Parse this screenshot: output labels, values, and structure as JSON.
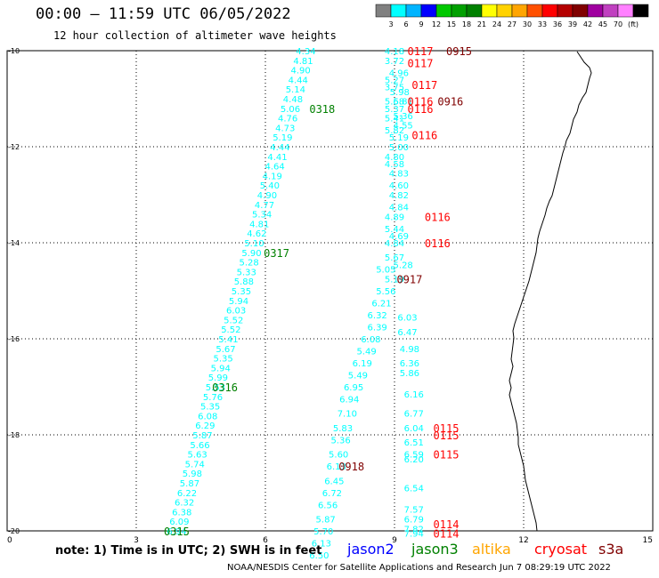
{
  "header": {
    "title": "00:00 – 11:59 UTC 06/05/2022",
    "subtitle": "12 hour collection of altimeter wave heights"
  },
  "scale": {
    "colors": [
      "#808080",
      "#00ffff",
      "#00b4ff",
      "#0000ff",
      "#00c800",
      "#00a000",
      "#008000",
      "#ffff00",
      "#ffd200",
      "#ffa500",
      "#ff5000",
      "#ff0000",
      "#b40000",
      "#800000",
      "#a000a0",
      "#c040c0",
      "#ff80ff",
      "#000000"
    ],
    "labels": [
      "3",
      "6",
      "9",
      "12",
      "15",
      "18",
      "21",
      "24",
      "27",
      "30",
      "33",
      "36",
      "39",
      "42",
      "45",
      "70",
      "(ft)"
    ]
  },
  "axes": {
    "x_ticks": [
      "0",
      "3",
      "6",
      "9",
      "12",
      "15"
    ],
    "y_ticks": [
      "-10",
      "-12",
      "-14",
      "-16",
      "-18",
      "-20"
    ]
  },
  "footer": {
    "note": "note: 1) Time is in UTC; 2) SWH is in feet",
    "legend": [
      {
        "name": "jason2",
        "color": "#0000ff"
      },
      {
        "name": "jason3",
        "color": "#008000"
      },
      {
        "name": "altika",
        "color": "#ffa500"
      },
      {
        "name": "cryosat",
        "color": "#ff0000"
      },
      {
        "name": "s3a",
        "color": "#800000"
      }
    ],
    "credit": "NOAA/NESDIS Center for Satellite Applications and Research   Jun  7 08:29:19 UTC 2022"
  },
  "chart_data": {
    "type": "scatter",
    "xlim": [
      0,
      15
    ],
    "ylim": [
      -20,
      -10
    ],
    "tracks": [
      {
        "satellite": "jason3",
        "color": "#00ffff",
        "points": [
          {
            "x": 6.94,
            "y": -10.0,
            "v": "4.34"
          },
          {
            "x": 6.88,
            "y": -10.2,
            "v": "4.81"
          },
          {
            "x": 6.82,
            "y": -10.4,
            "v": "4.90"
          },
          {
            "x": 6.76,
            "y": -10.6,
            "v": "4.44"
          },
          {
            "x": 6.7,
            "y": -10.8,
            "v": "5.14"
          },
          {
            "x": 6.64,
            "y": -11.0,
            "v": "4.48"
          },
          {
            "x": 6.58,
            "y": -11.2,
            "v": "5.06"
          },
          {
            "x": 6.52,
            "y": -11.4,
            "v": "4.76"
          },
          {
            "x": 6.46,
            "y": -11.6,
            "v": "4.73"
          },
          {
            "x": 6.4,
            "y": -11.8,
            "v": "5.19"
          },
          {
            "x": 6.34,
            "y": -12.0,
            "v": "4.44"
          },
          {
            "x": 6.28,
            "y": -12.2,
            "v": "4.41"
          },
          {
            "x": 6.22,
            "y": -12.4,
            "v": "4.64"
          },
          {
            "x": 6.16,
            "y": -12.6,
            "v": "4.19"
          },
          {
            "x": 6.1,
            "y": -12.8,
            "v": "5.40"
          },
          {
            "x": 6.04,
            "y": -13.0,
            "v": "4.90"
          },
          {
            "x": 5.98,
            "y": -13.2,
            "v": "4.77"
          },
          {
            "x": 5.92,
            "y": -13.4,
            "v": "5.34"
          },
          {
            "x": 5.86,
            "y": -13.6,
            "v": "4.81"
          },
          {
            "x": 5.8,
            "y": -13.8,
            "v": "4.62"
          },
          {
            "x": 5.74,
            "y": -14.0,
            "v": "5.10"
          },
          {
            "x": 5.68,
            "y": -14.2,
            "v": "5.90"
          },
          {
            "x": 5.62,
            "y": -14.4,
            "v": "5.28"
          },
          {
            "x": 5.56,
            "y": -14.6,
            "v": "5.33"
          },
          {
            "x": 5.5,
            "y": -14.8,
            "v": "5.88"
          },
          {
            "x": 5.44,
            "y": -15.0,
            "v": "5.35"
          },
          {
            "x": 5.38,
            "y": -15.2,
            "v": "5.94"
          },
          {
            "x": 5.32,
            "y": -15.4,
            "v": "6.03"
          },
          {
            "x": 5.26,
            "y": -15.6,
            "v": "5.52"
          },
          {
            "x": 5.2,
            "y": -15.8,
            "v": "5.52"
          },
          {
            "x": 5.14,
            "y": -16.0,
            "v": "5.41"
          },
          {
            "x": 5.08,
            "y": -16.2,
            "v": "5.67"
          },
          {
            "x": 5.02,
            "y": -16.4,
            "v": "5.35"
          },
          {
            "x": 4.96,
            "y": -16.6,
            "v": "5.94"
          },
          {
            "x": 4.9,
            "y": -16.8,
            "v": "5.99"
          },
          {
            "x": 4.84,
            "y": -17.0,
            "v": "5.53"
          },
          {
            "x": 4.78,
            "y": -17.2,
            "v": "5.76"
          },
          {
            "x": 4.72,
            "y": -17.4,
            "v": "5.35"
          },
          {
            "x": 4.66,
            "y": -17.6,
            "v": "6.08"
          },
          {
            "x": 4.6,
            "y": -17.8,
            "v": "6.29"
          },
          {
            "x": 4.54,
            "y": -18.0,
            "v": "5.87"
          },
          {
            "x": 4.48,
            "y": -18.2,
            "v": "5.66"
          },
          {
            "x": 4.42,
            "y": -18.4,
            "v": "5.63"
          },
          {
            "x": 4.36,
            "y": -18.6,
            "v": "5.74"
          },
          {
            "x": 4.3,
            "y": -18.8,
            "v": "5.98"
          },
          {
            "x": 4.24,
            "y": -19.0,
            "v": "5.87"
          },
          {
            "x": 4.18,
            "y": -19.2,
            "v": "6.22"
          },
          {
            "x": 4.12,
            "y": -19.4,
            "v": "6.32"
          },
          {
            "x": 4.06,
            "y": -19.6,
            "v": "6.38"
          },
          {
            "x": 4.0,
            "y": -19.8,
            "v": "6.09"
          },
          {
            "x": 3.94,
            "y": -20.0,
            "v": "6.94"
          }
        ],
        "time_labels": [
          {
            "x": 7.32,
            "y": -11.2,
            "v": "0318"
          },
          {
            "x": 6.26,
            "y": -14.2,
            "v": "0317"
          },
          {
            "x": 5.06,
            "y": -17.0,
            "v": "0316"
          },
          {
            "x": 3.94,
            "y": -20.0,
            "v": "0315"
          }
        ]
      },
      {
        "satellite": "cryosat",
        "color": "#00ffff",
        "points": [
          {
            "x": 9.0,
            "y": -10.0,
            "v": "4.18"
          },
          {
            "x": 9.0,
            "y": -10.2,
            "v": "3.72"
          },
          {
            "x": 9.1,
            "y": -10.45,
            "v": "4.96"
          },
          {
            "x": 9.0,
            "y": -10.6,
            "v": "5.27"
          },
          {
            "x": 9.0,
            "y": -10.75,
            "v": "3.75"
          },
          {
            "x": 9.12,
            "y": -10.85,
            "v": "5.98"
          },
          {
            "x": 9.0,
            "y": -11.05,
            "v": "5.68"
          },
          {
            "x": 9.2,
            "y": -11.05,
            "v": "5.81"
          },
          {
            "x": 9.0,
            "y": -11.2,
            "v": "5.37"
          },
          {
            "x": 9.0,
            "y": -11.4,
            "v": "5.41"
          },
          {
            "x": 9.2,
            "y": -11.35,
            "v": "5.36"
          },
          {
            "x": 9.2,
            "y": -11.55,
            "v": "4.55"
          },
          {
            "x": 9.0,
            "y": -11.65,
            "v": "5.82"
          },
          {
            "x": 9.1,
            "y": -11.8,
            "v": "5.19"
          },
          {
            "x": 9.1,
            "y": -12.0,
            "v": "5.00"
          },
          {
            "x": 9.0,
            "y": -12.2,
            "v": "4.80"
          },
          {
            "x": 9.0,
            "y": -12.35,
            "v": "4.58"
          },
          {
            "x": 9.1,
            "y": -12.55,
            "v": "4.83"
          },
          {
            "x": 9.1,
            "y": -12.8,
            "v": "4.60"
          },
          {
            "x": 9.1,
            "y": -13.0,
            "v": "4.82"
          },
          {
            "x": 9.1,
            "y": -13.25,
            "v": "4.84"
          },
          {
            "x": 9.0,
            "y": -13.45,
            "v": "4.89"
          },
          {
            "x": 9.0,
            "y": -13.7,
            "v": "5.44"
          },
          {
            "x": 9.1,
            "y": -13.85,
            "v": "4.69"
          },
          {
            "x": 9.0,
            "y": -14.0,
            "v": "4.84"
          },
          {
            "x": 9.0,
            "y": -14.3,
            "v": "5.67"
          },
          {
            "x": 9.2,
            "y": -14.45,
            "v": "5.28"
          },
          {
            "x": 8.8,
            "y": -14.55,
            "v": "5.05"
          },
          {
            "x": 9.0,
            "y": -14.75,
            "v": "5.19"
          },
          {
            "x": 8.8,
            "y": -15.0,
            "v": "5.56"
          },
          {
            "x": 8.7,
            "y": -15.25,
            "v": "6.21"
          },
          {
            "x": 8.6,
            "y": -15.5,
            "v": "6.32"
          },
          {
            "x": 9.3,
            "y": -15.55,
            "v": "6.03"
          },
          {
            "x": 8.6,
            "y": -15.75,
            "v": "6.39"
          },
          {
            "x": 9.3,
            "y": -15.85,
            "v": "6.47"
          },
          {
            "x": 8.45,
            "y": -16.0,
            "v": "6.08"
          },
          {
            "x": 8.35,
            "y": -16.25,
            "v": "5.49"
          },
          {
            "x": 9.35,
            "y": -16.2,
            "v": "4.98"
          },
          {
            "x": 8.25,
            "y": -16.5,
            "v": "6.19"
          },
          {
            "x": 9.35,
            "y": -16.5,
            "v": "6.36"
          },
          {
            "x": 8.15,
            "y": -16.75,
            "v": "5.49"
          },
          {
            "x": 9.35,
            "y": -16.7,
            "v": "5.86"
          },
          {
            "x": 8.05,
            "y": -17.0,
            "v": "6.95"
          },
          {
            "x": 9.45,
            "y": -17.15,
            "v": "6.16"
          },
          {
            "x": 7.95,
            "y": -17.25,
            "v": "6.94"
          },
          {
            "x": 7.9,
            "y": -17.55,
            "v": "7.10"
          },
          {
            "x": 9.45,
            "y": -17.55,
            "v": "6.77"
          },
          {
            "x": 7.8,
            "y": -17.85,
            "v": "5.83"
          },
          {
            "x": 9.45,
            "y": -17.85,
            "v": "6.04"
          },
          {
            "x": 7.75,
            "y": -18.1,
            "v": "5.36"
          },
          {
            "x": 9.45,
            "y": -18.15,
            "v": "6.51"
          },
          {
            "x": 7.7,
            "y": -18.4,
            "v": "5.60"
          },
          {
            "x": 9.45,
            "y": -18.4,
            "v": "6.59"
          },
          {
            "x": 9.45,
            "y": -18.5,
            "v": "6.20"
          },
          {
            "x": 7.65,
            "y": -18.65,
            "v": "6.13"
          },
          {
            "x": 7.6,
            "y": -18.95,
            "v": "6.45"
          },
          {
            "x": 9.45,
            "y": -19.1,
            "v": "6.54"
          },
          {
            "x": 7.55,
            "y": -19.2,
            "v": "6.72"
          },
          {
            "x": 7.45,
            "y": -19.45,
            "v": "6.56"
          },
          {
            "x": 9.45,
            "y": -19.55,
            "v": "7.57"
          },
          {
            "x": 7.4,
            "y": -19.75,
            "v": "5.87"
          },
          {
            "x": 9.45,
            "y": -19.75,
            "v": "6.79"
          },
          {
            "x": 7.35,
            "y": -20.0,
            "v": "5.70"
          },
          {
            "x": 9.45,
            "y": -19.95,
            "v": "7.82"
          },
          {
            "x": 9.45,
            "y": -20.05,
            "v": "7.94"
          },
          {
            "x": 7.3,
            "y": -20.25,
            "v": "6.13"
          },
          {
            "x": 7.25,
            "y": -20.5,
            "v": "6.50"
          }
        ],
        "time_labels": [
          {
            "x": 9.6,
            "y": -10.0,
            "v": "0117"
          },
          {
            "x": 9.6,
            "y": -10.25,
            "v": "0117"
          },
          {
            "x": 9.7,
            "y": -10.7,
            "v": "0117"
          },
          {
            "x": 9.6,
            "y": -11.05,
            "v": "0116"
          },
          {
            "x": 9.6,
            "y": -11.2,
            "v": "0116"
          },
          {
            "x": 9.7,
            "y": -11.75,
            "v": "0116"
          },
          {
            "x": 10.0,
            "y": -13.45,
            "v": "0116"
          },
          {
            "x": 10.0,
            "y": -14.0,
            "v": "0116"
          },
          {
            "x": 10.2,
            "y": -17.85,
            "v": "0115"
          },
          {
            "x": 10.2,
            "y": -18.0,
            "v": "0115"
          },
          {
            "x": 10.2,
            "y": -18.4,
            "v": "0115"
          },
          {
            "x": 10.2,
            "y": -19.85,
            "v": "0114"
          },
          {
            "x": 10.2,
            "y": -20.05,
            "v": "0114"
          }
        ]
      },
      {
        "satellite": "s3a",
        "color": "#800000",
        "points": [],
        "time_labels": [
          {
            "x": 10.5,
            "y": -10.0,
            "v": "0915"
          },
          {
            "x": 10.3,
            "y": -11.05,
            "v": "0916"
          },
          {
            "x": 9.35,
            "y": -14.75,
            "v": "0917"
          },
          {
            "x": 8.0,
            "y": -18.65,
            "v": "0918"
          }
        ]
      }
    ]
  }
}
